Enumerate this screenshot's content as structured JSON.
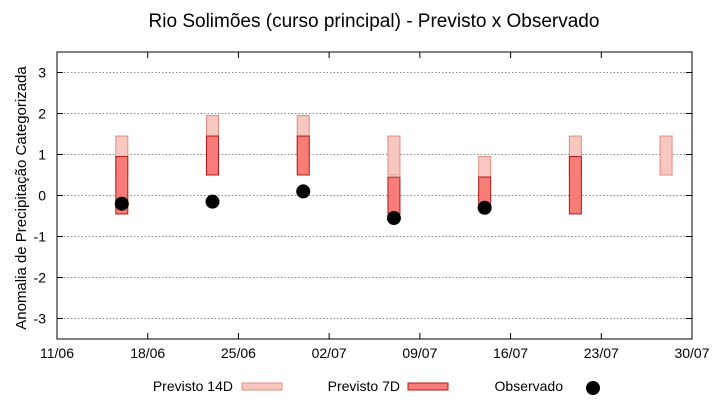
{
  "chart_data": {
    "type": "range-bar",
    "title": "Rio Solimões (curso principal) - Previsto x Observado",
    "xlabel": "",
    "ylabel": "Anomalia de Precipitação Categorizada",
    "xlim": [
      "2024-06-11",
      "2024-07-30"
    ],
    "ylim": [
      -3.5,
      3.5
    ],
    "x_ticks": [
      "11/06",
      "18/06",
      "25/06",
      "02/07",
      "09/07",
      "16/07",
      "23/07",
      "30/07"
    ],
    "y_ticks": [
      3,
      2,
      1,
      0,
      -1,
      -2,
      -3
    ],
    "grid": "horizontal dotted",
    "series": [
      {
        "name": "Previsto 14D",
        "color": "#f8c8c0",
        "stroke": "#e08c80",
        "points": [
          {
            "x": "2024-06-16",
            "low": 0.5,
            "high": 1.45
          },
          {
            "x": "2024-06-23",
            "low": 1.0,
            "high": 1.95
          },
          {
            "x": "2024-06-30",
            "low": 1.0,
            "high": 1.95
          },
          {
            "x": "2024-07-07",
            "low": 0.5,
            "high": 1.45
          },
          {
            "x": "2024-07-14",
            "low": 0.45,
            "high": 0.95
          },
          {
            "x": "2024-07-21",
            "low": 0.5,
            "high": 1.45
          },
          {
            "x": "2024-07-28",
            "low": 0.5,
            "high": 1.45
          }
        ]
      },
      {
        "name": "Previsto 7D",
        "color": "#f87c78",
        "stroke": "#b01818",
        "points": [
          {
            "x": "2024-06-16",
            "low": -0.45,
            "high": 0.95
          },
          {
            "x": "2024-06-23",
            "low": 0.5,
            "high": 1.45
          },
          {
            "x": "2024-06-30",
            "low": 0.5,
            "high": 1.45
          },
          {
            "x": "2024-07-07",
            "low": -0.45,
            "high": 0.45
          },
          {
            "x": "2024-07-14",
            "low": -0.3,
            "high": 0.45
          },
          {
            "x": "2024-07-21",
            "low": -0.45,
            "high": 0.95
          }
        ]
      },
      {
        "name": "Observado",
        "color": "#000000",
        "points": [
          {
            "x": "2024-06-16",
            "y": -0.2
          },
          {
            "x": "2024-06-23",
            "y": -0.15
          },
          {
            "x": "2024-06-30",
            "y": 0.1
          },
          {
            "x": "2024-07-07",
            "y": -0.55
          },
          {
            "x": "2024-07-14",
            "y": -0.3
          }
        ]
      }
    ],
    "legend": {
      "placement": "bottom",
      "items": [
        "Previsto 14D",
        "Previsto 7D",
        "Observado"
      ]
    }
  }
}
